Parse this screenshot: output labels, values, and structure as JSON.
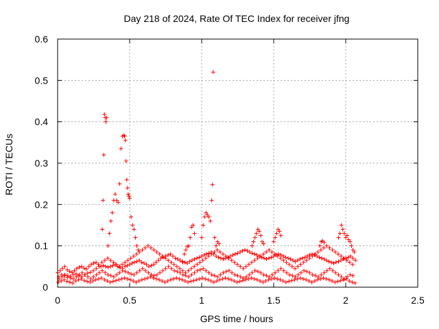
{
  "chart_data": {
    "type": "scatter",
    "title": "Day 218 of 2024, Rate Of TEC Index for receiver jfng",
    "xlabel": "GPS time / hours",
    "ylabel": "ROTI / TECUs",
    "xlim": [
      0,
      2.5
    ],
    "ylim": [
      0,
      0.6
    ],
    "xticks": [
      0,
      0.5,
      1,
      1.5,
      2,
      2.5
    ],
    "xtick_labels": [
      "0",
      "0.5",
      "1",
      "1.5",
      "2",
      "2.5"
    ],
    "yticks": [
      0,
      0.1,
      0.2,
      0.3,
      0.4,
      0.5,
      0.6
    ],
    "ytick_labels": [
      "0",
      "0.1",
      "0.2",
      "0.3",
      "0.4",
      "0.5",
      "0.6"
    ],
    "grid": true,
    "marker": "+",
    "color": "#ff0000",
    "series": [
      {
        "name": "ROTI",
        "x": [
          0.0,
          0.017,
          0.033,
          0.05,
          0.067,
          0.083,
          0.1,
          0.117,
          0.133,
          0.15,
          0.167,
          0.183,
          0.2,
          0.217,
          0.233,
          0.25,
          0.267,
          0.283,
          0.3,
          0.317,
          0.333,
          0.35,
          0.367,
          0.383,
          0.4,
          0.417,
          0.433,
          0.45,
          0.467,
          0.483,
          0.5,
          0.517,
          0.533,
          0.55,
          0.567,
          0.583,
          0.6,
          0.617,
          0.633,
          0.65,
          0.667,
          0.683,
          0.7,
          0.717,
          0.733,
          0.75,
          0.767,
          0.783,
          0.8,
          0.817,
          0.833,
          0.85,
          0.867,
          0.883,
          0.9,
          0.917,
          0.933,
          0.95,
          0.967,
          0.983,
          1.0,
          1.017,
          1.033,
          1.05,
          1.067,
          1.083,
          1.1,
          1.117,
          1.133,
          1.15,
          1.167,
          1.183,
          1.2,
          1.217,
          1.233,
          1.25,
          1.267,
          1.283,
          1.3,
          1.317,
          1.333,
          1.35,
          1.367,
          1.383,
          1.4,
          1.417,
          1.433,
          1.45,
          1.467,
          1.483,
          1.5,
          1.517,
          1.533,
          1.55,
          1.567,
          1.583,
          1.6,
          1.617,
          1.633,
          1.65,
          1.667,
          1.683,
          1.7,
          1.717,
          1.733,
          1.75,
          1.767,
          1.783,
          1.8,
          1.817,
          1.833,
          1.85,
          1.867,
          1.883,
          1.9,
          1.917,
          1.933,
          1.95,
          1.967,
          1.983,
          2.0,
          2.017,
          2.033,
          2.05,
          2.067,
          0.01,
          0.03,
          0.05,
          0.07,
          0.09,
          0.11,
          0.13,
          0.15,
          0.17,
          0.19,
          0.21,
          0.23,
          0.25,
          0.27,
          0.29,
          0.31,
          0.33,
          0.35,
          0.37,
          0.39,
          0.41,
          0.43,
          0.45,
          0.47,
          0.49,
          0.51,
          0.53,
          0.55,
          0.57,
          0.59,
          0.61,
          0.63,
          0.65,
          0.67,
          0.69,
          0.71,
          0.73,
          0.75,
          0.77,
          0.79,
          0.81,
          0.83,
          0.85,
          0.87,
          0.89,
          0.91,
          0.93,
          0.95,
          0.97,
          0.99,
          1.01,
          1.03,
          1.05,
          1.07,
          1.09,
          1.11,
          1.13,
          1.15,
          1.17,
          1.19,
          1.21,
          1.23,
          1.25,
          1.27,
          1.29,
          1.31,
          1.33,
          1.35,
          1.37,
          1.39,
          1.41,
          1.43,
          1.45,
          1.47,
          1.49,
          1.51,
          1.53,
          1.55,
          1.57,
          1.59,
          1.61,
          1.63,
          1.65,
          1.67,
          1.69,
          1.71,
          1.73,
          1.75,
          1.77,
          1.79,
          1.81,
          1.83,
          1.85,
          1.87,
          1.89,
          1.91,
          1.93,
          1.95,
          1.97,
          1.99,
          2.01,
          2.03,
          2.05,
          0.005,
          0.025,
          0.045,
          0.065,
          0.085,
          0.105,
          0.125,
          0.145,
          0.165,
          0.185,
          0.205,
          0.225,
          0.245,
          0.265,
          0.285,
          0.305,
          0.325,
          0.345,
          0.365,
          0.385,
          0.405,
          0.425,
          0.445,
          0.465,
          0.485,
          0.505,
          0.525,
          0.545,
          0.565,
          0.585,
          0.605,
          0.625,
          0.645,
          0.665,
          0.685,
          0.705,
          0.725,
          0.745,
          0.765,
          0.785,
          0.805,
          0.825,
          0.845,
          0.865,
          0.885,
          0.905,
          0.925,
          0.945,
          0.965,
          0.985,
          1.005,
          1.025,
          1.045,
          1.065,
          1.085,
          1.105,
          1.125,
          1.145,
          1.165,
          1.185,
          1.205,
          1.225,
          1.245,
          1.265,
          1.285,
          1.305,
          1.325,
          1.345,
          1.365,
          1.385,
          1.405,
          1.425,
          1.445,
          1.465,
          1.485,
          1.505,
          1.525,
          1.545,
          1.565,
          1.585,
          1.605,
          1.625,
          1.645,
          1.665,
          1.685,
          1.705,
          1.725,
          1.745,
          1.765,
          1.785,
          1.805,
          1.825,
          1.845,
          1.865,
          1.885,
          1.905,
          1.925,
          1.945,
          1.965,
          1.985,
          2.005,
          2.025,
          2.045,
          2.065,
          0.008,
          0.028,
          0.048,
          0.068,
          0.088,
          0.108,
          0.128,
          0.148,
          0.168,
          0.188,
          0.208,
          0.228,
          0.248,
          0.268,
          0.288,
          0.308,
          0.328,
          0.348,
          0.368,
          0.388,
          0.408,
          0.428,
          0.448,
          0.468,
          0.488,
          0.508,
          0.528,
          0.548,
          0.568,
          0.588,
          0.608,
          0.628,
          0.648,
          0.668,
          0.688,
          0.708,
          0.728,
          0.748,
          0.768,
          0.788,
          0.808,
          0.828,
          0.848,
          0.868,
          0.888,
          0.908,
          0.928,
          0.948,
          0.968,
          0.988,
          1.008,
          1.028,
          1.048,
          1.068,
          1.088,
          1.108,
          1.128,
          1.148,
          1.168,
          1.188,
          1.208,
          1.228,
          1.248,
          1.268,
          1.288,
          1.308,
          1.328,
          1.348,
          1.368,
          1.388,
          1.408,
          1.428,
          1.448,
          1.468,
          1.488,
          1.508,
          1.528,
          1.548,
          1.568,
          1.588,
          1.608,
          1.628,
          1.648,
          1.668,
          1.688,
          1.708,
          1.728,
          1.748,
          1.768,
          1.788,
          1.808,
          1.828,
          1.848,
          1.868,
          1.888,
          1.908,
          1.928,
          1.948,
          1.968,
          1.988,
          2.008,
          2.028,
          2.048,
          0.31,
          0.315,
          0.32,
          0.325,
          0.33,
          0.335,
          0.34,
          0.35,
          0.36,
          0.37,
          0.38,
          0.39,
          0.4,
          0.41,
          0.42,
          0.43,
          0.44,
          0.45,
          0.46,
          0.465,
          0.47,
          0.475,
          0.48,
          0.485,
          0.49,
          0.495,
          0.5,
          0.51,
          0.52,
          0.53,
          0.54,
          0.55,
          0.56,
          1.0,
          1.01,
          1.02,
          1.03,
          1.04,
          1.05,
          1.06,
          1.07,
          1.075,
          1.08,
          1.09,
          1.1,
          1.11,
          1.12,
          0.87,
          0.88,
          0.89,
          0.9,
          0.91,
          0.92,
          0.93,
          0.94,
          0.95,
          1.35,
          1.36,
          1.37,
          1.38,
          1.39,
          1.4,
          1.41,
          1.42,
          1.43,
          1.5,
          1.51,
          1.52,
          1.53,
          1.54,
          1.55,
          1.82,
          1.83,
          1.84,
          1.85,
          1.95,
          1.96,
          1.97,
          1.98,
          1.99,
          2.0,
          2.01,
          2.02,
          2.03,
          2.04,
          2.05,
          2.06
        ],
        "y": [
          0.035,
          0.04,
          0.045,
          0.05,
          0.042,
          0.038,
          0.036,
          0.04,
          0.045,
          0.048,
          0.05,
          0.046,
          0.044,
          0.05,
          0.055,
          0.058,
          0.06,
          0.055,
          0.05,
          0.052,
          0.05,
          0.048,
          0.05,
          0.052,
          0.055,
          0.05,
          0.048,
          0.045,
          0.05,
          0.052,
          0.055,
          0.058,
          0.06,
          0.062,
          0.065,
          0.06,
          0.058,
          0.055,
          0.05,
          0.052,
          0.055,
          0.06,
          0.065,
          0.07,
          0.072,
          0.075,
          0.078,
          0.08,
          0.075,
          0.07,
          0.068,
          0.065,
          0.062,
          0.06,
          0.058,
          0.062,
          0.065,
          0.068,
          0.07,
          0.072,
          0.075,
          0.078,
          0.08,
          0.082,
          0.085,
          0.08,
          0.075,
          0.072,
          0.07,
          0.068,
          0.07,
          0.072,
          0.075,
          0.078,
          0.08,
          0.082,
          0.085,
          0.088,
          0.09,
          0.088,
          0.085,
          0.082,
          0.08,
          0.078,
          0.075,
          0.072,
          0.07,
          0.068,
          0.07,
          0.072,
          0.075,
          0.078,
          0.08,
          0.078,
          0.075,
          0.072,
          0.07,
          0.068,
          0.065,
          0.062,
          0.065,
          0.068,
          0.07,
          0.072,
          0.075,
          0.078,
          0.08,
          0.078,
          0.075,
          0.072,
          0.07,
          0.068,
          0.065,
          0.062,
          0.06,
          0.058,
          0.06,
          0.062,
          0.065,
          0.068,
          0.07,
          0.072,
          0.075,
          0.07,
          0.065,
          0.02,
          0.025,
          0.03,
          0.028,
          0.022,
          0.02,
          0.025,
          0.03,
          0.035,
          0.03,
          0.025,
          0.02,
          0.025,
          0.03,
          0.035,
          0.04,
          0.035,
          0.03,
          0.028,
          0.025,
          0.03,
          0.035,
          0.04,
          0.038,
          0.035,
          0.032,
          0.03,
          0.035,
          0.04,
          0.045,
          0.04,
          0.035,
          0.03,
          0.028,
          0.03,
          0.035,
          0.04,
          0.045,
          0.05,
          0.045,
          0.04,
          0.038,
          0.035,
          0.03,
          0.028,
          0.025,
          0.03,
          0.035,
          0.04,
          0.042,
          0.045,
          0.04,
          0.035,
          0.03,
          0.028,
          0.025,
          0.03,
          0.035,
          0.038,
          0.04,
          0.035,
          0.03,
          0.028,
          0.025,
          0.022,
          0.025,
          0.03,
          0.035,
          0.04,
          0.038,
          0.035,
          0.03,
          0.028,
          0.025,
          0.03,
          0.035,
          0.04,
          0.045,
          0.04,
          0.035,
          0.03,
          0.028,
          0.025,
          0.03,
          0.035,
          0.04,
          0.038,
          0.035,
          0.03,
          0.028,
          0.025,
          0.03,
          0.035,
          0.04,
          0.045,
          0.04,
          0.035,
          0.03,
          0.025,
          0.02,
          0.025,
          0.03,
          0.028,
          0.012,
          0.015,
          0.018,
          0.014,
          0.012,
          0.01,
          0.015,
          0.018,
          0.02,
          0.016,
          0.014,
          0.012,
          0.015,
          0.018,
          0.02,
          0.022,
          0.018,
          0.015,
          0.012,
          0.014,
          0.016,
          0.018,
          0.02,
          0.022,
          0.02,
          0.018,
          0.015,
          0.012,
          0.015,
          0.018,
          0.02,
          0.022,
          0.025,
          0.022,
          0.02,
          0.018,
          0.015,
          0.012,
          0.015,
          0.018,
          0.02,
          0.022,
          0.02,
          0.018,
          0.015,
          0.012,
          0.014,
          0.016,
          0.018,
          0.02,
          0.022,
          0.02,
          0.018,
          0.015,
          0.012,
          0.015,
          0.018,
          0.02,
          0.022,
          0.02,
          0.018,
          0.015,
          0.012,
          0.014,
          0.016,
          0.018,
          0.02,
          0.022,
          0.02,
          0.018,
          0.015,
          0.012,
          0.015,
          0.018,
          0.02,
          0.022,
          0.02,
          0.018,
          0.015,
          0.012,
          0.014,
          0.016,
          0.018,
          0.02,
          0.022,
          0.02,
          0.018,
          0.015,
          0.012,
          0.015,
          0.018,
          0.02,
          0.022,
          0.02,
          0.018,
          0.015,
          0.012,
          0.014,
          0.016,
          0.018,
          0.02,
          0.015,
          0.012,
          0.01,
          0.025,
          0.03,
          0.028,
          0.024,
          0.026,
          0.03,
          0.032,
          0.028,
          0.025,
          0.03,
          0.034,
          0.036,
          0.04,
          0.045,
          0.05,
          0.06,
          0.065,
          0.07,
          0.065,
          0.06,
          0.055,
          0.05,
          0.055,
          0.06,
          0.065,
          0.07,
          0.075,
          0.08,
          0.085,
          0.09,
          0.095,
          0.1,
          0.095,
          0.09,
          0.085,
          0.08,
          0.075,
          0.07,
          0.065,
          0.06,
          0.055,
          0.05,
          0.045,
          0.04,
          0.035,
          0.04,
          0.045,
          0.05,
          0.055,
          0.06,
          0.065,
          0.07,
          0.075,
          0.08,
          0.085,
          0.09,
          0.085,
          0.08,
          0.075,
          0.07,
          0.065,
          0.06,
          0.055,
          0.05,
          0.045,
          0.05,
          0.055,
          0.06,
          0.065,
          0.07,
          0.075,
          0.08,
          0.085,
          0.09,
          0.085,
          0.08,
          0.075,
          0.07,
          0.065,
          0.06,
          0.055,
          0.05,
          0.045,
          0.05,
          0.055,
          0.06,
          0.065,
          0.07,
          0.075,
          0.08,
          0.085,
          0.09,
          0.095,
          0.1,
          0.095,
          0.09,
          0.085,
          0.08,
          0.075,
          0.07,
          0.065,
          0.06,
          0.055,
          0.14,
          0.21,
          0.32,
          0.418,
          0.41,
          0.4,
          0.41,
          0.1,
          0.13,
          0.16,
          0.18,
          0.21,
          0.225,
          0.21,
          0.205,
          0.25,
          0.335,
          0.365,
          0.367,
          0.365,
          0.355,
          0.305,
          0.26,
          0.24,
          0.225,
          0.22,
          0.215,
          0.17,
          0.15,
          0.14,
          0.12,
          0.1,
          0.09,
          0.12,
          0.15,
          0.17,
          0.18,
          0.175,
          0.17,
          0.16,
          0.21,
          0.248,
          0.52,
          0.12,
          0.1,
          0.11,
          0.105,
          0.06,
          0.08,
          0.09,
          0.098,
          0.1,
          0.12,
          0.145,
          0.15,
          0.13,
          0.1,
          0.11,
          0.12,
          0.13,
          0.14,
          0.135,
          0.125,
          0.11,
          0.105,
          0.11,
          0.12,
          0.13,
          0.14,
          0.135,
          0.125,
          0.1,
          0.11,
          0.112,
          0.108,
          0.12,
          0.13,
          0.15,
          0.14,
          0.13,
          0.12,
          0.125,
          0.115,
          0.11,
          0.1,
          0.09,
          0.085
        ]
      }
    ]
  }
}
